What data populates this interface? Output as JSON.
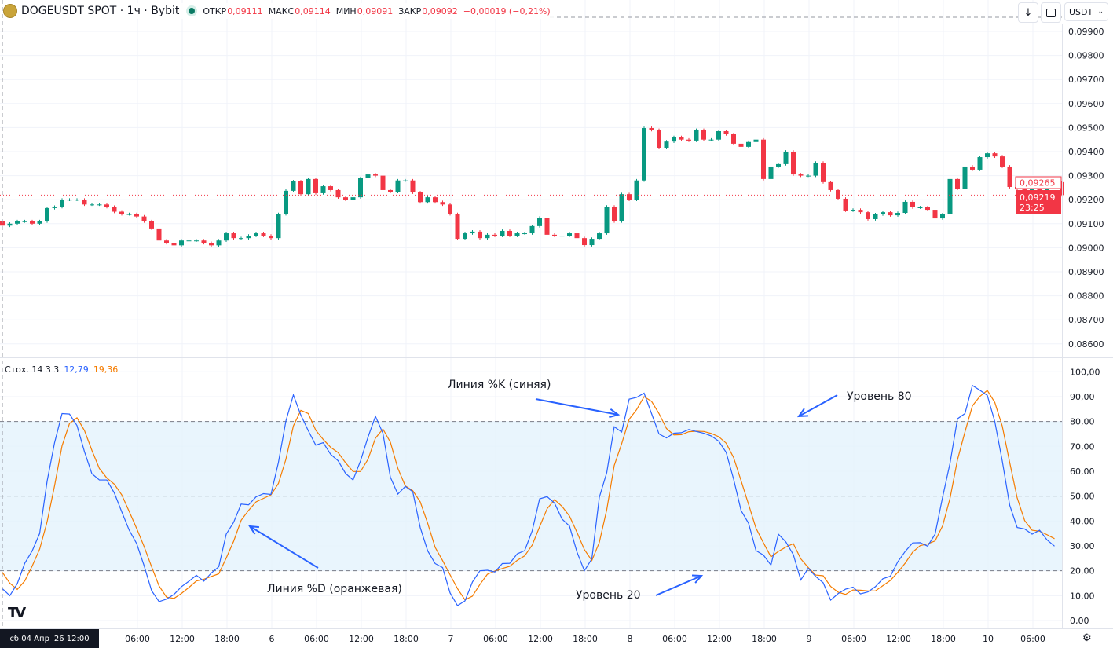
{
  "header": {
    "symbol_title": "DOGEUSDT SPOT · 1ч · Bybit",
    "open_label": "ОТКР",
    "open_value": "0,09111",
    "high_label": "МАКС",
    "high_value": "0,09114",
    "low_label": "МИН",
    "low_value": "0,09091",
    "close_label": "ЗАКР",
    "close_value": "0,09092",
    "change": "−0,00019 (−0,21%)",
    "currency_select": "USDT",
    "down_arrow_button": "↓"
  },
  "colors": {
    "up": "#089981",
    "down": "#f23645",
    "k_line": "#2962ff",
    "d_line": "#f57c00",
    "band": "#e3f2fd"
  },
  "price_axis": {
    "ticks": [
      "0,09900",
      "0,09800",
      "0,09700",
      "0,09600",
      "0,09500",
      "0,09400",
      "0,09300",
      "0,09200",
      "0,09100",
      "0,09000",
      "0,08900",
      "0,08800",
      "0,08700",
      "0,08600"
    ],
    "tick_values": [
      0.099,
      0.098,
      0.097,
      0.096,
      0.095,
      0.094,
      0.093,
      0.092,
      0.091,
      0.09,
      0.089,
      0.088,
      0.087,
      0.086
    ],
    "label_outline": "0,09265",
    "label_outline_value": 0.09265,
    "last_price": "0,09219",
    "last_price_value": 0.09219,
    "countdown": "23:25"
  },
  "stoch": {
    "name": "Стох. 14 3 3",
    "k_value": "12,79",
    "d_value": "19,36",
    "ticks": [
      "100,00",
      "90,00",
      "80,00",
      "70,00",
      "60,00",
      "50,00",
      "40,00",
      "30,00",
      "20,00",
      "10,00",
      "0,00"
    ],
    "upper_level": 80,
    "middle_level": 50,
    "lower_level": 20
  },
  "time_axis": {
    "crosshair_label": "сб 04 Апр '26   12:00",
    "labels": [
      "06:00",
      "12:00",
      "18:00",
      "6",
      "06:00",
      "12:00",
      "18:00",
      "7",
      "06:00",
      "12:00",
      "18:00",
      "8",
      "06:00",
      "12:00",
      "18:00",
      "9",
      "06:00",
      "12:00",
      "18:00",
      "10",
      "06:00"
    ]
  },
  "annotations": {
    "k_line": "Линия %K (синяя)",
    "d_line": "Линия %D (оранжевая)",
    "level_80": "Уровень 80",
    "level_20": "Уровень 20"
  },
  "chart_data": [
    {
      "type": "candlestick",
      "title": "DOGEUSDT SPOT · 1ч · Bybit",
      "interval": "1h",
      "first_candle": {
        "time": "сб 04 Апр '26 12:00",
        "open": 0.09111,
        "high": 0.09114,
        "low": 0.09091,
        "close": 0.09092
      },
      "ylim": [
        0.0855,
        0.0995
      ],
      "closes": [
        0.09092,
        0.091,
        0.0911,
        0.0911,
        0.091,
        0.0911,
        0.09165,
        0.0917,
        0.092,
        0.092,
        0.092,
        0.0918,
        0.0918,
        0.0918,
        0.0917,
        0.0915,
        0.0914,
        0.0914,
        0.0913,
        0.0911,
        0.0908,
        0.0903,
        0.0902,
        0.0901,
        0.0903,
        0.0903,
        0.0903,
        0.0902,
        0.0901,
        0.0903,
        0.0906,
        0.0904,
        0.0904,
        0.0905,
        0.0906,
        0.0905,
        0.0904,
        0.0914,
        0.09237,
        0.09276,
        0.09223,
        0.09286,
        0.09227,
        0.09256,
        0.0924,
        0.0921,
        0.092,
        0.0921,
        0.0929,
        0.09305,
        0.093,
        0.0924,
        0.09233,
        0.0928,
        0.0928,
        0.0923,
        0.0919,
        0.0921,
        0.0919,
        0.0918,
        0.0914,
        0.09037,
        0.0906,
        0.09067,
        0.0904,
        0.09054,
        0.0905,
        0.0907,
        0.0905,
        0.0906,
        0.0906,
        0.0909,
        0.09125,
        0.09054,
        0.0905,
        0.0905,
        0.0906,
        0.0904,
        0.09011,
        0.09037,
        0.0906,
        0.09171,
        0.0911,
        0.09223,
        0.092,
        0.0928,
        0.09498,
        0.0949,
        0.09416,
        0.09442,
        0.0946,
        0.0945,
        0.09446,
        0.0949,
        0.0945,
        0.0945,
        0.09485,
        0.09472,
        0.09433,
        0.0942,
        0.0944,
        0.0945,
        0.09286,
        0.09338,
        0.09348,
        0.094,
        0.09305,
        0.093,
        0.093,
        0.09354,
        0.09273,
        0.0924,
        0.09204,
        0.09155,
        0.09158,
        0.09148,
        0.09119,
        0.09139,
        0.09148,
        0.09135,
        0.09145,
        0.09191,
        0.09168,
        0.09168,
        0.09158,
        0.09122,
        0.09139,
        0.09286,
        0.09246,
        0.09338,
        0.09325,
        0.09377,
        0.09393,
        0.0938,
        0.09338,
        0.09253,
        0.09243,
        0.09233,
        0.0925,
        0.09217,
        0.09273,
        0.09273,
        0.09219
      ]
    },
    {
      "type": "line",
      "title": "Стох. 14 3 3",
      "ylim": [
        0,
        100
      ],
      "series": [
        {
          "name": "%K",
          "values": [
            12.8,
            10,
            14.8,
            23,
            28,
            35,
            56,
            71.5,
            83.2,
            83,
            78.4,
            67.9,
            59,
            56.5,
            56.5,
            51.3,
            43.7,
            36.3,
            30.9,
            22,
            12,
            7.6,
            8.6,
            10.5,
            13.6,
            15.8,
            18.2,
            15.8,
            19.1,
            21.6,
            34.7,
            39.5,
            46.8,
            46.5,
            49.7,
            51,
            50.7,
            63.6,
            80.2,
            90.7,
            82.6,
            76.3,
            70.5,
            71.5,
            66.8,
            64.2,
            59.1,
            56.5,
            64.2,
            73.7,
            82.1,
            75.3,
            57.6,
            50.8,
            53.9,
            51.8,
            37.4,
            28,
            22.9,
            21.3,
            11.1,
            6,
            7.9,
            15.5,
            20,
            20.2,
            19.5,
            22.9,
            23,
            26.8,
            28.1,
            36,
            48.9,
            49.8,
            47.2,
            40.8,
            38,
            27.6,
            20,
            24.8,
            49.5,
            59.5,
            77.9,
            75.8,
            89,
            89.7,
            91.4,
            83.2,
            75,
            73.4,
            75.3,
            75.5,
            76.8,
            76,
            75.3,
            74.2,
            72.1,
            67.6,
            56.8,
            44.2,
            39.1,
            28.1,
            26.3,
            22.3,
            34.7,
            31.6,
            26.5,
            16.3,
            21,
            17.7,
            15.2,
            8.2,
            10.8,
            12.6,
            13.4,
            10.7,
            11.5,
            13.6,
            16.8,
            17.8,
            23.6,
            27.8,
            31.2,
            31.3,
            29.9,
            34.7,
            49.5,
            63.2,
            81.1,
            83.2,
            94.5,
            92.6,
            90.5,
            80,
            64.2,
            46.3,
            37.4,
            36.8,
            34.7,
            36.3,
            32.4,
            29.9
          ]
        },
        {
          "name": "%D",
          "values": [
            19.4,
            15,
            12.5,
            15.9,
            21.9,
            28.7,
            39.7,
            54.2,
            70.2,
            79.2,
            81.5,
            76.4,
            68.4,
            61.1,
            57.3,
            54.8,
            50.5,
            43.8,
            37,
            29.7,
            21.6,
            13.9,
            9.4,
            8.9,
            10.9,
            13.3,
            15.9,
            16.6,
            17.7,
            18.8,
            25.1,
            31.9,
            40.3,
            44.3,
            47.7,
            49.1,
            50.5,
            55.1,
            64.8,
            78.2,
            84.5,
            83.2,
            76.5,
            72.8,
            69.6,
            67.5,
            63.4,
            59.9,
            59.9,
            64.8,
            73.3,
            77,
            71.7,
            61.2,
            54.1,
            52.2,
            47.7,
            39.1,
            29.4,
            24.1,
            18.4,
            12.8,
            8.3,
            9.8,
            14.5,
            18.6,
            19.9,
            20.9,
            21.8,
            24.2,
            26,
            30.3,
            37.7,
            44.9,
            48.6,
            45.9,
            42,
            35.5,
            28.5,
            24.1,
            31.4,
            44.6,
            62.3,
            71.1,
            80.9,
            84.8,
            90,
            88.1,
            83.2,
            77.2,
            74.6,
            74.7,
            75.9,
            76.1,
            76,
            75.2,
            73.9,
            71.3,
            65.5,
            56.2,
            46.7,
            37.1,
            31.2,
            25.6,
            27.8,
            29.5,
            30.9,
            24.8,
            21.3,
            18.3,
            18,
            13.7,
            11.4,
            10.5,
            12.3,
            12.2,
            11.9,
            11.9,
            14,
            16.1,
            19.4,
            23.1,
            27.5,
            30.1,
            30.8,
            32,
            38,
            49.1,
            64.6,
            75.8,
            86.3,
            90.1,
            92.5,
            87.7,
            78.2,
            63.5,
            49.3,
            40.2,
            36.3,
            35.9,
            34.5,
            32.9
          ]
        }
      ]
    }
  ]
}
